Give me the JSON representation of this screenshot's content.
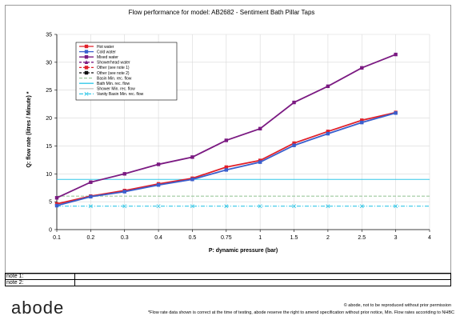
{
  "chart_data": {
    "type": "line",
    "title": "Flow performance for model: AB2682 - Sentiment Bath Pillar Taps",
    "xlabel": "P: dynamic pressure (bar)",
    "ylabel": "Q: flow rate (litres / Minute) *",
    "x_categories": [
      "0.1",
      "0.2",
      "0.3",
      "0.4",
      "0.5",
      "0.75",
      "1",
      "1.5",
      "2",
      "2.5",
      "3",
      "4"
    ],
    "ylim": [
      0,
      35
    ],
    "yticks": [
      0,
      5,
      10,
      15,
      20,
      25,
      30,
      35
    ],
    "grid": true,
    "legend_position": "top-left",
    "series": [
      {
        "name": "Hot water",
        "color": "#e0202a",
        "marker": "square",
        "dash": "",
        "values": [
          4.6,
          6.0,
          7.0,
          8.2,
          9.2,
          11.2,
          12.4,
          15.5,
          17.6,
          19.6,
          21.0
        ]
      },
      {
        "name": "Cold water",
        "color": "#3a5fcd",
        "marker": "square",
        "dash": "",
        "values": [
          4.3,
          5.9,
          6.8,
          8.0,
          9.0,
          10.7,
          12.1,
          15.1,
          17.2,
          19.2,
          20.9
        ]
      },
      {
        "name": "Mixed water",
        "color": "#7b1a82",
        "marker": "square",
        "dash": "",
        "values": [
          5.7,
          8.5,
          10.0,
          11.7,
          13.0,
          16.0,
          18.1,
          22.8,
          25.7,
          29.0,
          31.4
        ]
      },
      {
        "name": "Showerhead water",
        "color": "#7b1a82",
        "marker": "triangle",
        "dash": "3,2",
        "values": []
      },
      {
        "name": "Other (see note 1)",
        "color": "#e0202a",
        "marker": "square",
        "dash": "3,2",
        "values": []
      },
      {
        "name": "Other (see note 2)",
        "color": "#111111",
        "marker": "square",
        "dash": "3,2",
        "values": []
      },
      {
        "name": "Basin Min. rec. flow",
        "color": "#9ec99e",
        "marker": "none",
        "dash": "4,2",
        "values": [
          6,
          6,
          6,
          6,
          6,
          6,
          6,
          6,
          6,
          6,
          6,
          6
        ]
      },
      {
        "name": "Bath Min. rec. flow",
        "color": "#33c8e8",
        "marker": "none",
        "dash": "",
        "values": [
          9,
          9,
          9,
          9,
          9,
          9,
          9,
          9,
          9,
          9,
          9,
          9
        ]
      },
      {
        "name": "Shower Min. rec. flow",
        "color": "#c8c8c8",
        "marker": "none",
        "dash": "",
        "values": []
      },
      {
        "name": "Vanity Basin Min. rec. flow",
        "color": "#33c8e8",
        "marker": "x",
        "dash": "5,2,1,2",
        "values": [
          4.2,
          4.2,
          4.2,
          4.2,
          4.2,
          4.2,
          4.2,
          4.2,
          4.2,
          4.2,
          4.2,
          4.2
        ]
      }
    ]
  },
  "notes": [
    {
      "label": "note 1:",
      "value": ""
    },
    {
      "label": "note 2:",
      "value": ""
    }
  ],
  "footer": {
    "logo": "abode",
    "copyright": "© abode, not to be reproduced without prior permission",
    "disclaimer": "*Flow rate data shown is correct at the time of testing, abode reserve the right to amend specification without prior notice, Min. Flow rates accoriding to NHBC"
  }
}
